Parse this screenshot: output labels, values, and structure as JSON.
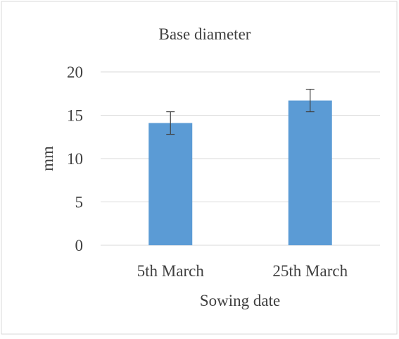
{
  "chart_data": {
    "type": "bar",
    "title": "Base diameter",
    "xlabel": "Sowing date",
    "ylabel": "mm",
    "categories": [
      "5th March",
      "25th March"
    ],
    "values": [
      14.1,
      16.7
    ],
    "error_bars": [
      1.3,
      1.3
    ],
    "ylim": [
      0,
      20
    ],
    "yticks": [
      0,
      5,
      10,
      15,
      20
    ],
    "grid": true,
    "legend": "none",
    "colors": {
      "bar": "#5b9bd5",
      "gridline": "#d9d9d9",
      "error_bar": "#404040",
      "text": "#404040",
      "frame": "#d9d9d9"
    }
  }
}
